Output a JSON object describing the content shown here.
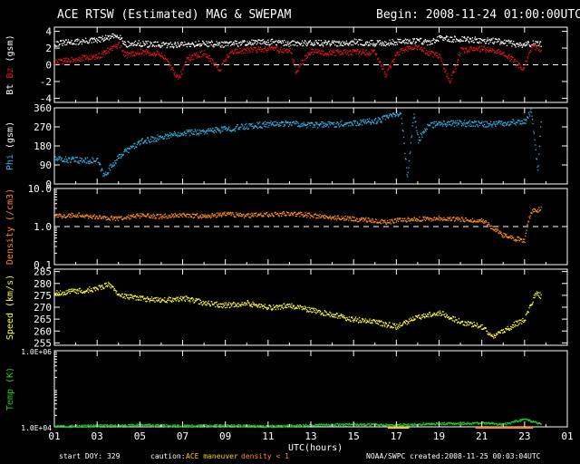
{
  "header": {
    "title": "ACE RTSW (Estimated) MAG & SWEPAM",
    "begin": "Begin: 2008-11-24 01:00:00UTC"
  },
  "footer": {
    "start_doy": "start DOY: 329",
    "caution_label": "caution:",
    "caution_maneuver": "ACE maneuver",
    "caution_density": "density < 1",
    "source": "NOAA/SWPC",
    "created": "created:2008-11-25 00:03:04UTC"
  },
  "chart_data": {
    "type": "scatter",
    "xlabel": "UTC(hours)",
    "x_ticks": [
      "01",
      "03",
      "05",
      "07",
      "09",
      "11",
      "13",
      "15",
      "17",
      "19",
      "21",
      "23",
      "01"
    ],
    "x_range_hours": [
      1,
      25
    ],
    "data_end_hour": 23.75,
    "colors": {
      "bt": "#ffffff",
      "bz": "#e8141b",
      "phi": "#2fb6e8",
      "density": "#ff8c1a",
      "speed": "#ffff33",
      "temp": "#22cc22",
      "maneuver": "#ffcc00",
      "low_density": "#ff8c1a"
    },
    "panels": [
      {
        "id": "mag",
        "ylabel_parts": [
          "Bt",
          "Bz",
          "(gsm)"
        ],
        "yticks": [
          4,
          2,
          0,
          -2,
          -4
        ],
        "ylim": [
          -4.5,
          4.5
        ],
        "ref_line": 0,
        "series": [
          {
            "name": "Bt",
            "color_key": "bt",
            "points": [
              [
                1,
                2.6
              ],
              [
                2,
                2.8
              ],
              [
                3,
                3.0
              ],
              [
                3.5,
                3.3
              ],
              [
                4,
                3.6
              ],
              [
                4.3,
                2.5
              ],
              [
                5,
                2.6
              ],
              [
                6,
                2.4
              ],
              [
                7,
                2.5
              ],
              [
                8,
                2.6
              ],
              [
                9,
                2.5
              ],
              [
                10,
                2.7
              ],
              [
                11,
                2.8
              ],
              [
                12,
                2.6
              ],
              [
                13,
                2.7
              ],
              [
                14,
                2.6
              ],
              [
                15,
                2.8
              ],
              [
                16,
                2.6
              ],
              [
                17,
                2.8
              ],
              [
                17.5,
                2.9
              ],
              [
                18,
                3.0
              ],
              [
                18.5,
                2.7
              ],
              [
                19,
                3.2
              ],
              [
                20,
                3.1
              ],
              [
                21,
                3.0
              ],
              [
                22,
                2.8
              ],
              [
                22.8,
                2.4
              ],
              [
                23.3,
                2.6
              ],
              [
                23.75,
                2.5
              ]
            ]
          },
          {
            "name": "Bz",
            "color_key": "bz",
            "points": [
              [
                1,
                0.3
              ],
              [
                2,
                0.8
              ],
              [
                3,
                1.0
              ],
              [
                3.5,
                1.8
              ],
              [
                4,
                2.4
              ],
              [
                4.3,
                1.2
              ],
              [
                5,
                1.6
              ],
              [
                6,
                1.3
              ],
              [
                6.8,
                -1.6
              ],
              [
                7.2,
                0.8
              ],
              [
                8,
                1.5
              ],
              [
                8.7,
                -0.5
              ],
              [
                9.2,
                1.6
              ],
              [
                10,
                1.8
              ],
              [
                11,
                1.9
              ],
              [
                12,
                1.8
              ],
              [
                12.3,
                -0.8
              ],
              [
                12.8,
                1.2
              ],
              [
                13,
                1.6
              ],
              [
                14,
                1.5
              ],
              [
                15,
                1.6
              ],
              [
                16,
                1.5
              ],
              [
                16.5,
                -1.2
              ],
              [
                17,
                1.4
              ],
              [
                17.5,
                2.0
              ],
              [
                18,
                2.1
              ],
              [
                18.5,
                1.5
              ],
              [
                19,
                1.0
              ],
              [
                19.5,
                -2.0
              ],
              [
                20,
                1.8
              ],
              [
                21,
                2.0
              ],
              [
                21.5,
                1.7
              ],
              [
                22,
                1.5
              ],
              [
                22.6,
                0.3
              ],
              [
                22.9,
                -0.6
              ],
              [
                23.3,
                2.2
              ],
              [
                23.75,
                2.0
              ]
            ]
          }
        ]
      },
      {
        "id": "phi",
        "ylabel_parts": [
          "Phi",
          "(gsm)"
        ],
        "yticks": [
          360,
          270,
          180,
          90,
          0
        ],
        "ylim": [
          0,
          360
        ],
        "series": [
          {
            "name": "Phi",
            "color_key": "phi",
            "points": [
              [
                1,
                120
              ],
              [
                2,
                115
              ],
              [
                3,
                112
              ],
              [
                3.3,
                40
              ],
              [
                3.7,
                95
              ],
              [
                4.2,
                150
              ],
              [
                5,
                200
              ],
              [
                6,
                225
              ],
              [
                7,
                245
              ],
              [
                8,
                250
              ],
              [
                9,
                262
              ],
              [
                10,
                275
              ],
              [
                11,
                285
              ],
              [
                12,
                290
              ],
              [
                13,
                280
              ],
              [
                14,
                285
              ],
              [
                15,
                292
              ],
              [
                16,
                300
              ],
              [
                16.5,
                315
              ],
              [
                17.2,
                340
              ],
              [
                17.5,
                30
              ],
              [
                17.8,
                340
              ],
              [
                18,
                210
              ],
              [
                18.5,
                280
              ],
              [
                19,
                285
              ],
              [
                20,
                290
              ],
              [
                21,
                285
              ],
              [
                22,
                290
              ],
              [
                23,
                300
              ],
              [
                23.3,
                350
              ],
              [
                23.6,
                60
              ],
              [
                23.75,
                310
              ]
            ]
          }
        ]
      },
      {
        "id": "density",
        "ylabel_parts": [
          "Density",
          "(/cm3)"
        ],
        "yticks_labels": [
          "10.0",
          "1.0",
          "0.1"
        ],
        "yticks": [
          10,
          1,
          0.1
        ],
        "log": true,
        "ylim": [
          0.1,
          10
        ],
        "ref_line": 1,
        "series": [
          {
            "name": "Density",
            "color_key": "density",
            "points": [
              [
                1,
                1.9
              ],
              [
                2,
                2.1
              ],
              [
                3,
                1.8
              ],
              [
                4,
                1.7
              ],
              [
                5,
                2.0
              ],
              [
                6,
                1.9
              ],
              [
                7,
                2.1
              ],
              [
                8,
                1.9
              ],
              [
                9,
                2.2
              ],
              [
                10,
                2.0
              ],
              [
                11,
                2.1
              ],
              [
                12,
                2.3
              ],
              [
                13,
                2.0
              ],
              [
                14,
                1.8
              ],
              [
                15,
                1.6
              ],
              [
                16,
                1.5
              ],
              [
                16.5,
                1.3
              ],
              [
                17,
                1.5
              ],
              [
                18,
                1.6
              ],
              [
                19,
                1.7
              ],
              [
                20,
                1.6
              ],
              [
                21,
                1.5
              ],
              [
                21.5,
                0.9
              ],
              [
                22,
                0.6
              ],
              [
                22.5,
                0.5
              ],
              [
                23,
                0.45
              ],
              [
                23.3,
                2.5
              ],
              [
                23.75,
                3.0
              ]
            ]
          }
        ]
      },
      {
        "id": "speed",
        "ylabel_parts": [
          "Speed",
          "(km/s)"
        ],
        "yticks": [
          285,
          280,
          275,
          270,
          265,
          260,
          255
        ],
        "ylim": [
          254,
          286
        ],
        "series": [
          {
            "name": "Speed",
            "color_key": "speed",
            "points": [
              [
                1,
                276
              ],
              [
                2,
                277
              ],
              [
                3,
                278
              ],
              [
                3.5,
                280
              ],
              [
                4,
                275
              ],
              [
                5,
                274
              ],
              [
                6,
                273
              ],
              [
                7,
                274
              ],
              [
                8,
                272
              ],
              [
                9,
                271
              ],
              [
                10,
                272
              ],
              [
                11,
                270
              ],
              [
                12,
                271
              ],
              [
                13,
                269
              ],
              [
                14,
                267
              ],
              [
                15,
                265
              ],
              [
                16,
                264
              ],
              [
                17,
                262
              ],
              [
                18,
                266
              ],
              [
                19,
                268
              ],
              [
                20,
                264
              ],
              [
                21,
                262
              ],
              [
                21.5,
                258
              ],
              [
                22,
                260
              ],
              [
                22.5,
                263
              ],
              [
                23,
                265
              ],
              [
                23.5,
                276
              ],
              [
                23.75,
                275
              ]
            ]
          }
        ]
      },
      {
        "id": "temp",
        "ylabel_parts": [
          "Temp",
          "(K)"
        ],
        "yticks_labels": [
          "1.0E+06",
          "1.0E+04"
        ],
        "yticks": [
          1000000,
          10000
        ],
        "log": true,
        "ylim": [
          10000,
          1000000
        ],
        "series": [
          {
            "name": "Temp",
            "color_key": "temp",
            "points": [
              [
                1,
                10500
              ],
              [
                3,
                11000
              ],
              [
                5,
                11500
              ],
              [
                7,
                10800
              ],
              [
                9,
                11200
              ],
              [
                11,
                10600
              ],
              [
                13,
                11300
              ],
              [
                15,
                12000
              ],
              [
                17,
                11500
              ],
              [
                19,
                12500
              ],
              [
                21,
                13000
              ],
              [
                22,
                12000
              ],
              [
                23,
                16000
              ],
              [
                23.75,
                12000
              ]
            ]
          }
        ]
      }
    ]
  }
}
